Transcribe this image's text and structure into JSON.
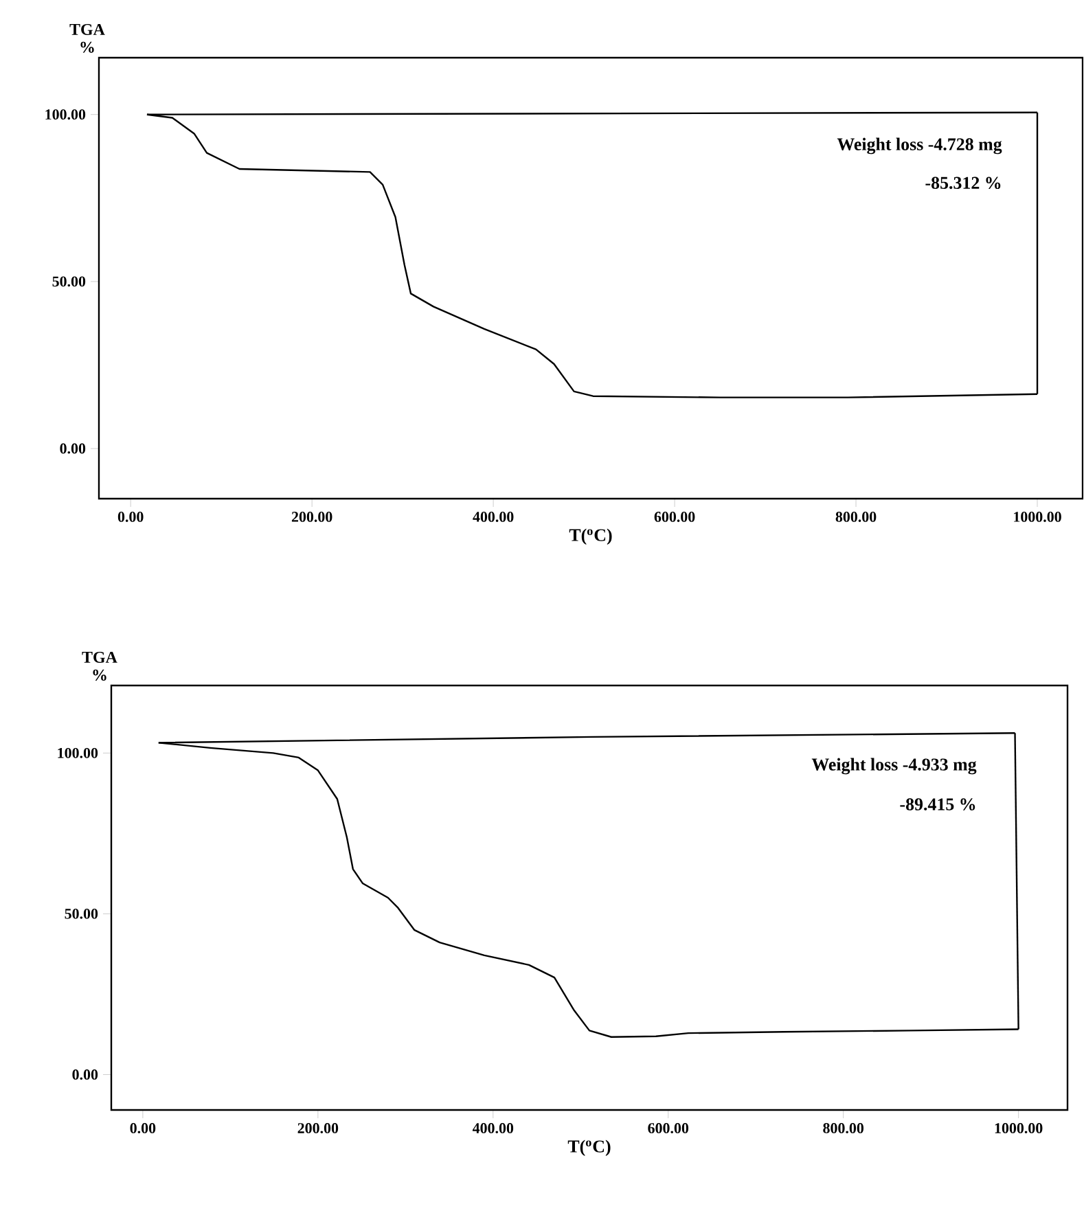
{
  "chart_data": [
    {
      "type": "line",
      "ylabel": "TGA %",
      "xlabel": "T($^{o}$C)",
      "marker": "none",
      "line_style": "solid",
      "annotations": [
        "Weight loss -4.728 mg",
        "-85.312 %"
      ],
      "xlim": [
        -35,
        1050
      ],
      "ylim": [
        -15,
        117
      ],
      "xticks": [
        {
          "value": 0,
          "label": "0.00"
        },
        {
          "value": 200,
          "label": "200.00"
        },
        {
          "value": 400,
          "label": "400.00"
        },
        {
          "value": 600,
          "label": "600.00"
        },
        {
          "value": 800,
          "label": "800.00"
        },
        {
          "value": 1000,
          "label": "1000.00"
        }
      ],
      "yticks": [
        {
          "value": 0,
          "label": "0.00"
        },
        {
          "value": 50,
          "label": "50.00"
        },
        {
          "value": 100,
          "label": "100.00"
        }
      ],
      "series": [
        {
          "color": "#000000",
          "x": [
            18,
            46,
            70,
            84,
            120,
            264,
            278,
            292,
            302,
            309,
            334,
            390,
            447,
            467,
            489,
            510,
            650,
            791,
            1000
          ],
          "values": [
            100,
            99,
            94.3,
            88.5,
            83.7,
            82.8,
            79,
            69.3,
            55,
            46.4,
            42.5,
            35.8,
            29.7,
            25.3,
            17.1,
            15.7,
            15.3,
            15.3,
            16.3
          ]
        },
        {
          "color": "#000000",
          "x": [
            1000,
            1000
          ],
          "values": [
            16.3,
            100.6
          ]
        },
        {
          "color": "#000000",
          "x": [
            18,
            1000
          ],
          "values": [
            100,
            100.6
          ]
        }
      ]
    },
    {
      "type": "line",
      "ylabel": "TGA %",
      "xlabel": "T($^{o}$C)",
      "marker": "none",
      "line_style": "solid",
      "annotations": [
        "Weight loss -4.933 mg",
        "-89.415 %"
      ],
      "xlim": [
        -36,
        1056
      ],
      "ylim": [
        -11,
        121
      ],
      "xticks": [
        {
          "value": 0,
          "label": "0.00"
        },
        {
          "value": 200,
          "label": "200.00"
        },
        {
          "value": 400,
          "label": "400.00"
        },
        {
          "value": 600,
          "label": "600.00"
        },
        {
          "value": 800,
          "label": "800.00"
        },
        {
          "value": 1000,
          "label": "1000.00"
        }
      ],
      "yticks": [
        {
          "value": 0,
          "label": "0.00"
        },
        {
          "value": 50,
          "label": "50.00"
        },
        {
          "value": 100,
          "label": "100.00"
        }
      ],
      "series": [
        {
          "color": "#000000",
          "x": [
            18,
            77,
            149,
            178,
            200,
            222,
            233,
            240,
            251,
            280,
            291,
            310,
            339,
            390,
            441,
            470,
            492,
            510,
            535,
            586,
            623,
            732,
            877,
            1000
          ],
          "values": [
            103.2,
            101.6,
            100,
            98.6,
            94.6,
            85.7,
            73.8,
            63.9,
            59.5,
            55,
            52,
            45,
            41.1,
            37.1,
            34.1,
            30.2,
            20.2,
            13.7,
            11.7,
            11.9,
            12.9,
            13.3,
            13.7,
            14.1
          ]
        },
        {
          "color": "#000000",
          "x": [
            996,
            1000
          ],
          "values": [
            106.2,
            14.1
          ]
        },
        {
          "color": "#000000",
          "x": [
            18,
            513,
            996
          ],
          "values": [
            103.2,
            105,
            106.2
          ]
        }
      ]
    }
  ]
}
